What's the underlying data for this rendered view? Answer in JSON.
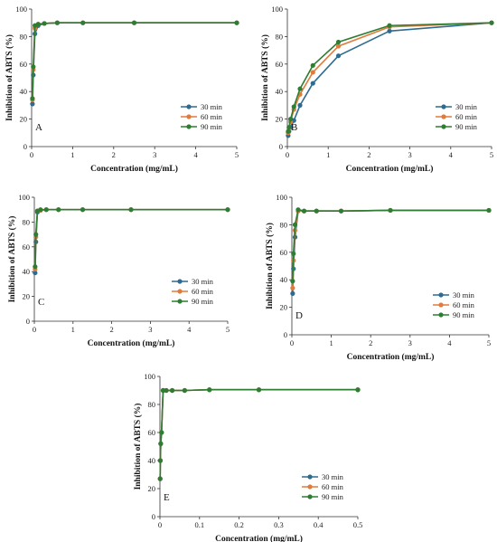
{
  "figure_panels_note": "",
  "colors": {
    "30 min": "#2e6b8f",
    "60 min": "#e07b3c",
    "90 min": "#2e7d32"
  },
  "chart_data": [
    {
      "type": "line",
      "panel_label": "A",
      "xlabel": "Concentration (mg/mL)",
      "ylabel": "Inhibition of ABTS (%)",
      "xlim": [
        0,
        5
      ],
      "ylim": [
        0,
        100
      ],
      "xticks": [
        0,
        1,
        2,
        3,
        4,
        5
      ],
      "yticks": [
        0,
        20,
        40,
        60,
        80,
        100
      ],
      "legend_position": "lower-right",
      "series": [
        {
          "name": "30 min",
          "x": [
            0.02,
            0.04,
            0.08,
            0.16,
            0.31,
            0.625,
            1.25,
            2.5,
            5
          ],
          "y": [
            31,
            52,
            82,
            88,
            89.5,
            90,
            90,
            90,
            90
          ]
        },
        {
          "name": "60 min",
          "x": [
            0.02,
            0.04,
            0.08,
            0.16,
            0.31,
            0.625,
            1.25,
            2.5,
            5
          ],
          "y": [
            34,
            56,
            86,
            89,
            89.5,
            90,
            90,
            90,
            90
          ]
        },
        {
          "name": "90 min",
          "x": [
            0.02,
            0.04,
            0.08,
            0.16,
            0.31,
            0.625,
            1.25,
            2.5,
            5
          ],
          "y": [
            35,
            58,
            88,
            89,
            89.5,
            90,
            90,
            90,
            90
          ]
        }
      ]
    },
    {
      "type": "line",
      "panel_label": "B",
      "xlabel": "Concentration (mg/mL)",
      "ylabel": "Inhibition of ABTS (%)",
      "xlim": [
        0,
        5
      ],
      "ylim": [
        0,
        100
      ],
      "xticks": [
        0,
        1,
        2,
        3,
        4,
        5
      ],
      "yticks": [
        0,
        20,
        40,
        60,
        80,
        100
      ],
      "legend_position": "lower-right",
      "series": [
        {
          "name": "30 min",
          "x": [
            0.02,
            0.04,
            0.08,
            0.16,
            0.31,
            0.625,
            1.25,
            2.5,
            5
          ],
          "y": [
            8,
            11,
            14,
            19,
            30,
            46,
            66,
            84,
            90
          ]
        },
        {
          "name": "60 min",
          "x": [
            0.02,
            0.04,
            0.08,
            0.16,
            0.31,
            0.625,
            1.25,
            2.5,
            5
          ],
          "y": [
            10,
            13,
            18,
            27,
            38,
            54,
            73,
            87,
            90
          ]
        },
        {
          "name": "90 min",
          "x": [
            0.02,
            0.04,
            0.08,
            0.16,
            0.31,
            0.625,
            1.25,
            2.5,
            5
          ],
          "y": [
            11,
            14,
            20,
            29,
            42,
            59,
            76,
            88,
            90
          ]
        }
      ]
    },
    {
      "type": "line",
      "panel_label": "C",
      "xlabel": "Concentration (mg/mL)",
      "ylabel": "Inhibition of ABTS (%)",
      "xlim": [
        0,
        5
      ],
      "ylim": [
        0,
        100
      ],
      "xticks": [
        0,
        1,
        2,
        3,
        4,
        5
      ],
      "yticks": [
        0,
        20,
        40,
        60,
        80,
        100
      ],
      "legend_position": "lower-right",
      "series": [
        {
          "name": "30 min",
          "x": [
            0.02,
            0.04,
            0.08,
            0.16,
            0.31,
            0.625,
            1.25,
            2.5,
            5
          ],
          "y": [
            39,
            64,
            88,
            89.5,
            90,
            90,
            90,
            90,
            90
          ]
        },
        {
          "name": "60 min",
          "x": [
            0.02,
            0.04,
            0.08,
            0.16,
            0.31,
            0.625,
            1.25,
            2.5,
            5
          ],
          "y": [
            42,
            68,
            89,
            89.5,
            90,
            90,
            90,
            90,
            90
          ]
        },
        {
          "name": "90 min",
          "x": [
            0.02,
            0.04,
            0.08,
            0.16,
            0.31,
            0.625,
            1.25,
            2.5,
            5
          ],
          "y": [
            44,
            70,
            89,
            90,
            90,
            90,
            90,
            90,
            90
          ]
        }
      ]
    },
    {
      "type": "line",
      "panel_label": "D",
      "xlabel": "Concentration (mg/mL)",
      "ylabel": "Inhibition of ABTS (%)",
      "xlim": [
        0,
        5
      ],
      "ylim": [
        0,
        100
      ],
      "xticks": [
        0,
        1,
        2,
        3,
        4,
        5
      ],
      "yticks": [
        0,
        20,
        40,
        60,
        80,
        100
      ],
      "legend_position": "lower-right",
      "series": [
        {
          "name": "30 min",
          "x": [
            0.02,
            0.04,
            0.08,
            0.16,
            0.31,
            0.625,
            1.25,
            2.5,
            5
          ],
          "y": [
            30,
            48,
            71,
            90,
            90,
            90,
            90,
            90.5,
            90.5
          ]
        },
        {
          "name": "60 min",
          "x": [
            0.02,
            0.04,
            0.08,
            0.16,
            0.31,
            0.625,
            1.25,
            2.5,
            5
          ],
          "y": [
            34,
            54,
            76,
            90,
            90,
            90,
            90,
            90.5,
            90.5
          ]
        },
        {
          "name": "90 min",
          "x": [
            0.02,
            0.04,
            0.08,
            0.16,
            0.31,
            0.625,
            1.25,
            2.5,
            5
          ],
          "y": [
            39,
            59,
            80,
            91,
            90,
            90,
            90,
            90.5,
            90.5
          ]
        }
      ]
    },
    {
      "type": "line",
      "panel_label": "E",
      "xlabel": "Concentration (mg/mL)",
      "ylabel": "Inhibition of ABTS (%)",
      "xlim": [
        0,
        0.5
      ],
      "ylim": [
        0,
        100
      ],
      "xticks": [
        0,
        0.1,
        0.2,
        0.3,
        0.4,
        0.5
      ],
      "yticks": [
        0,
        20,
        40,
        60,
        80,
        100
      ],
      "legend_position": "lower-right",
      "series": [
        {
          "name": "30 min",
          "x": [
            0.0005,
            0.001,
            0.002,
            0.004,
            0.008,
            0.016,
            0.031,
            0.0625,
            0.125,
            0.25,
            0.5
          ],
          "y": [
            27,
            40,
            52,
            60,
            90,
            90,
            90,
            90,
            90.5,
            90.5,
            90.5
          ]
        },
        {
          "name": "60 min",
          "x": [
            0.0005,
            0.001,
            0.002,
            0.004,
            0.008,
            0.016,
            0.031,
            0.0625,
            0.125,
            0.25,
            0.5
          ],
          "y": [
            27,
            40,
            52,
            60,
            90,
            90,
            90,
            90,
            90.5,
            90.5,
            90.5
          ]
        },
        {
          "name": "90 min",
          "x": [
            0.0005,
            0.001,
            0.002,
            0.004,
            0.008,
            0.016,
            0.031,
            0.0625,
            0.125,
            0.25,
            0.5
          ],
          "y": [
            27,
            40,
            52,
            60,
            90,
            90,
            90,
            90,
            90.5,
            90.5,
            90.5
          ]
        }
      ]
    }
  ]
}
